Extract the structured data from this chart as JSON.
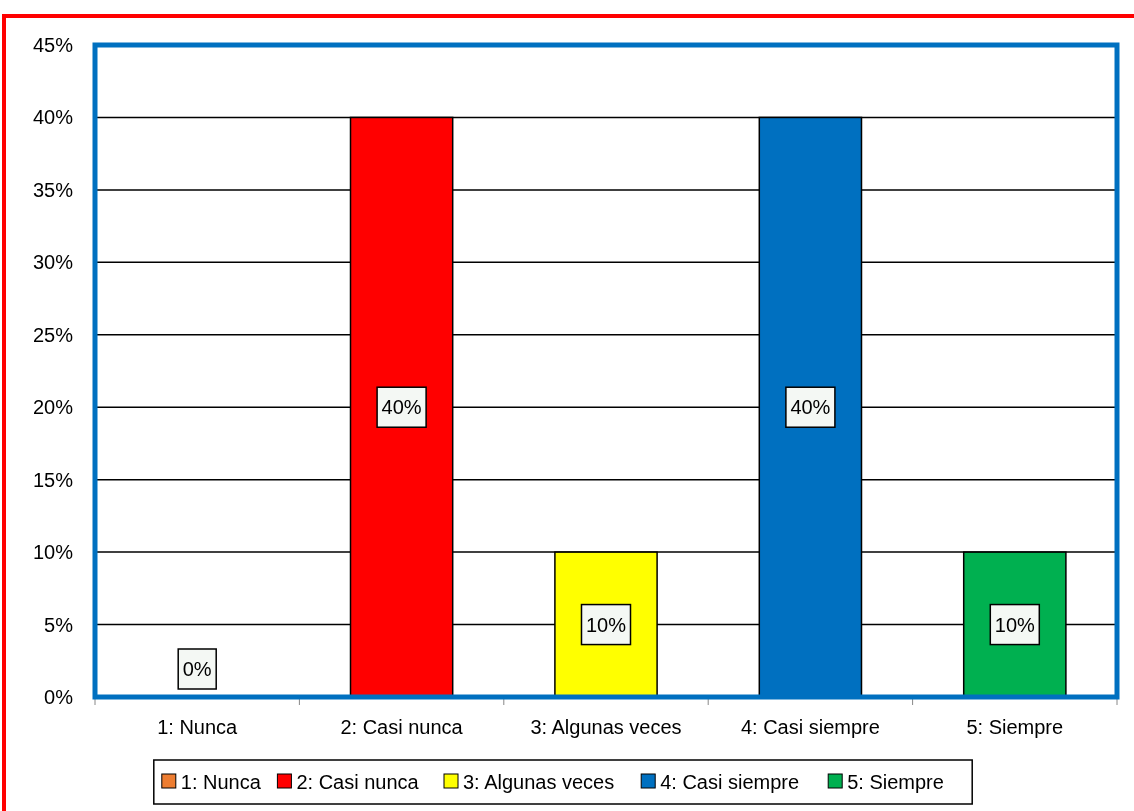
{
  "chart_data": {
    "type": "bar",
    "categories": [
      "1: Nunca",
      "2: Casi nunca",
      "3: Algunas veces",
      "4: Casi siempre",
      "5: Siempre"
    ],
    "series": [
      {
        "name": "1: Nunca",
        "color": "#ed7d31",
        "values": [
          0,
          null,
          null,
          null,
          null
        ],
        "value_labels": [
          "0%",
          null,
          null,
          null,
          null
        ]
      },
      {
        "name": "2: Casi nunca",
        "color": "#ff0000",
        "values": [
          null,
          40,
          null,
          null,
          null
        ],
        "value_labels": [
          null,
          "40%",
          null,
          null,
          null
        ]
      },
      {
        "name": "3: Algunas veces",
        "color": "#ffff00",
        "values": [
          null,
          null,
          10,
          null,
          null
        ],
        "value_labels": [
          null,
          null,
          "10%",
          null,
          null
        ]
      },
      {
        "name": "4: Casi siempre",
        "color": "#0070c0",
        "values": [
          null,
          null,
          null,
          40,
          null
        ],
        "value_labels": [
          null,
          null,
          null,
          "40%",
          null
        ]
      },
      {
        "name": "5: Siempre",
        "color": "#00b050",
        "values": [
          null,
          null,
          null,
          null,
          10
        ],
        "value_labels": [
          null,
          null,
          null,
          null,
          "10%"
        ]
      }
    ],
    "ylim": [
      0,
      45
    ],
    "yticks": [
      {
        "value": 0,
        "label": "0%"
      },
      {
        "value": 5,
        "label": "5%"
      },
      {
        "value": 10,
        "label": "10%"
      },
      {
        "value": 15,
        "label": "15%"
      },
      {
        "value": 20,
        "label": "20%"
      },
      {
        "value": 25,
        "label": "25%"
      },
      {
        "value": 30,
        "label": "30%"
      },
      {
        "value": 35,
        "label": "35%"
      },
      {
        "value": 40,
        "label": "40%"
      },
      {
        "value": 45,
        "label": "45%"
      }
    ],
    "grid": "y",
    "legend": "bottom"
  }
}
